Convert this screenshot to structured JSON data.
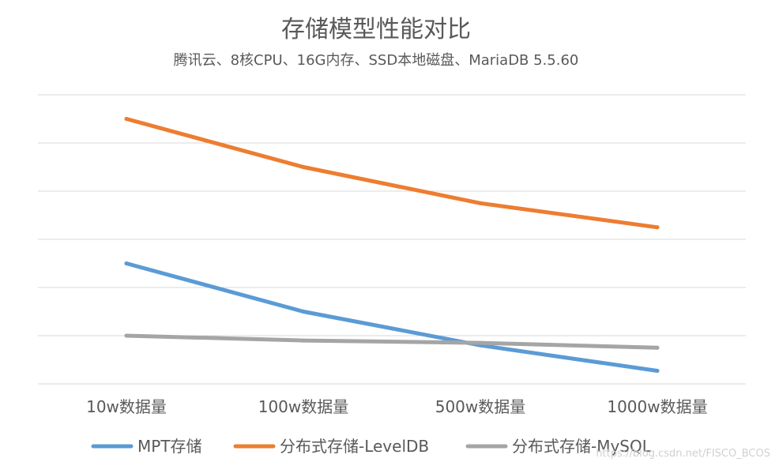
{
  "chart_data": {
    "type": "line",
    "title": "存储模型性能对比",
    "subtitle": "腾讯云、8核CPU、16G内存、SSD本地磁盘、MariaDB 5.5.60",
    "categories": [
      "10w数据量",
      "100w数据量",
      "500w数据量",
      "1000w数据量"
    ],
    "ylim": [
      0,
      6
    ],
    "y_grid_step": 1,
    "grid": true,
    "y_tick_labels_visible": false,
    "legend": "bottom",
    "series": [
      {
        "name": "MPT存储",
        "values": [
          2.5,
          1.5,
          0.8,
          0.27
        ],
        "color": "#5b9bd5"
      },
      {
        "name": "分布式存储-LevelDB",
        "values": [
          5.5,
          4.5,
          3.75,
          3.25
        ],
        "color": "#ed7d31"
      },
      {
        "name": "分布式存储-MySQL",
        "values": [
          1.0,
          0.9,
          0.85,
          0.75
        ],
        "color": "#a5a5a5"
      }
    ]
  },
  "watermark": "https://blog.csdn.net/FISCO_BCOS"
}
